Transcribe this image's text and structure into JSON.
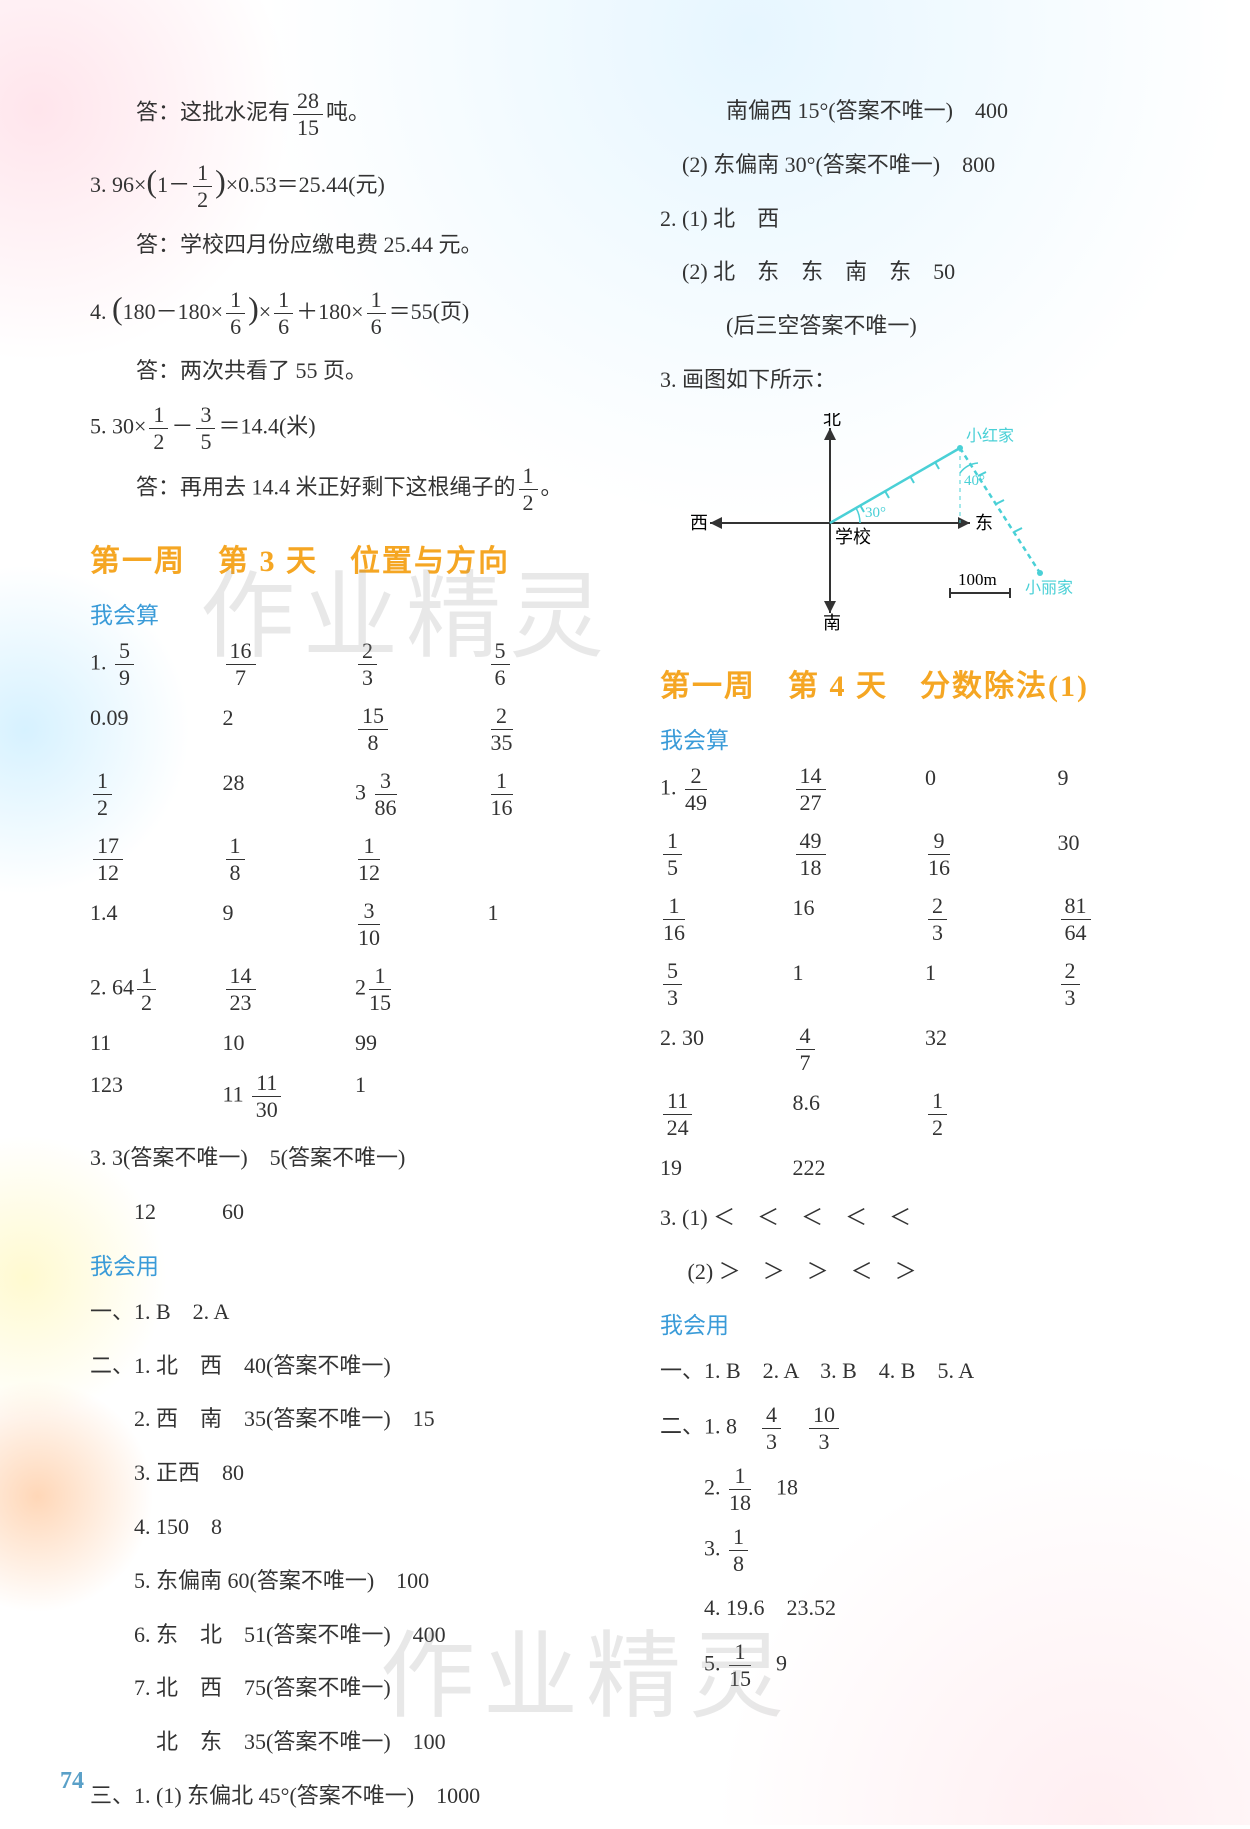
{
  "page_number": "74",
  "watermark_text": "作业精灵",
  "left_column": {
    "top_answers": [
      {
        "prefix": "答：",
        "text": "这批水泥有",
        "frac": {
          "n": "28",
          "d": "15"
        },
        "suffix": "吨。"
      },
      {
        "num": "3.",
        "expr": "96×(1－½)×0.53＝25.44(元)"
      },
      {
        "prefix": "答：",
        "text": "学校四月份应缴电费 25.44 元。"
      },
      {
        "num": "4.",
        "expr": "(180－180×⅙)×⅙＋180×⅙＝55(页)"
      },
      {
        "prefix": "答：",
        "text": "两次共看了 55 页。"
      },
      {
        "num": "5.",
        "expr": "30×½－⅗＝14.4(米)"
      },
      {
        "prefix": "答：",
        "text": "再用去 14.4 米正好剩下这根绳子的½。"
      }
    ],
    "section1_title": "第一周　第 3 天　位置与方向",
    "calc_title": "我会算",
    "calc1_rows": [
      [
        {
          "n": "5",
          "d": "9"
        },
        {
          "n": "16",
          "d": "7"
        },
        {
          "n": "2",
          "d": "3"
        },
        {
          "n": "5",
          "d": "6"
        }
      ],
      [
        "0.09",
        "2",
        {
          "n": "15",
          "d": "8"
        },
        {
          "n": "2",
          "d": "35"
        }
      ],
      [
        {
          "n": "1",
          "d": "2"
        },
        "28",
        "3 3/86",
        {
          "n": "1",
          "d": "16"
        }
      ],
      [
        {
          "n": "17",
          "d": "12"
        },
        {
          "n": "1",
          "d": "8"
        },
        {
          "n": "1",
          "d": "12"
        },
        ""
      ],
      [
        "1.4",
        "9",
        {
          "n": "3",
          "d": "10"
        },
        "1"
      ]
    ],
    "calc2_prefix": "2. 64",
    "calc2_rows": [
      [
        {
          "n": "1",
          "d": "2"
        },
        {
          "n": "14",
          "d": "23"
        },
        "2 1/15",
        ""
      ],
      [
        "11",
        "10",
        "99",
        ""
      ],
      [
        "123",
        "11 11/30",
        "1",
        ""
      ]
    ],
    "calc3_line": "3. 3(答案不唯一)　5(答案不唯一)",
    "calc3_b": "　　12　　　60",
    "use_title": "我会用",
    "use_items": [
      "一、1. B　2. A",
      "二、1. 北　西　40(答案不唯一)",
      "　　2. 西　南　35(答案不唯一)　15",
      "　　3. 正西　80",
      "　　4. 150　8",
      "　　5. 东偏南 60(答案不唯一)　100",
      "　　6. 东　北　51(答案不唯一)　400",
      "　　7. 北　西　75(答案不唯一)",
      "　　　北　东　35(答案不唯一)　100",
      "三、1. (1) 东偏北 45°(答案不唯一)　1000"
    ]
  },
  "right_column": {
    "top_lines": [
      "　　　南偏西 15°(答案不唯一)　400",
      "　(2) 东偏南 30°(答案不唯一)　800",
      "2. (1) 北　西",
      "　(2) 北　东　东　南　东　50",
      "　　　(后三空答案不唯一)",
      "3. 画图如下所示："
    ],
    "diagram": {
      "labels": {
        "north": "北",
        "south": "南",
        "east": "东",
        "west": "西",
        "center": "学校",
        "scale": "100m",
        "a": "小红家",
        "b": "小丽家",
        "ang1": "30°",
        "ang2": "40°"
      },
      "colors": {
        "axis": "#333",
        "draw": "#4ad0d6"
      }
    },
    "section2_title": "第一周　第 4 天　分数除法(1)",
    "calc_title": "我会算",
    "calc1_rows": [
      [
        {
          "n": "2",
          "d": "49"
        },
        {
          "n": "14",
          "d": "27"
        },
        "0",
        "9"
      ],
      [
        {
          "n": "1",
          "d": "5"
        },
        {
          "n": "49",
          "d": "18"
        },
        {
          "n": "9",
          "d": "16"
        },
        "30"
      ],
      [
        {
          "n": "1",
          "d": "16"
        },
        "16",
        {
          "n": "2",
          "d": "3"
        },
        {
          "n": "81",
          "d": "64"
        }
      ],
      [
        {
          "n": "5",
          "d": "3"
        },
        "1",
        "1",
        {
          "n": "2",
          "d": "3"
        }
      ]
    ],
    "calc2_rows": [
      [
        "2. 30",
        {
          "n": "4",
          "d": "7"
        },
        "32",
        ""
      ],
      [
        {
          "n": "11",
          "d": "24"
        },
        "8.6",
        {
          "n": "1",
          "d": "2"
        },
        ""
      ],
      [
        "19",
        "222",
        "",
        ""
      ]
    ],
    "calc3": [
      "3. (1) ＜　＜　＜　＜　＜",
      "　 (2) ＞　＞　＞　＜　＞"
    ],
    "use_title": "我会用",
    "use_items": [
      "一、1. B　2. A　3. B　4. B　5. A",
      "二、1. 8　4/3　10/3",
      "　　2. 1/18　18",
      "　　3. 1/8",
      "　　4. 19.6　23.52",
      "　　5. 1/15　9"
    ]
  }
}
